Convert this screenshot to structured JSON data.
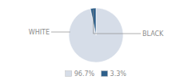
{
  "chart_data": {
    "type": "pie",
    "categories": [
      "WHITE",
      "BLACK"
    ],
    "values": [
      96.7,
      3.3
    ],
    "value_labels": [
      "96.7%",
      "3.3%"
    ],
    "colors": [
      "#d6dde8",
      "#2e5f8a"
    ],
    "legend": "bottom"
  }
}
